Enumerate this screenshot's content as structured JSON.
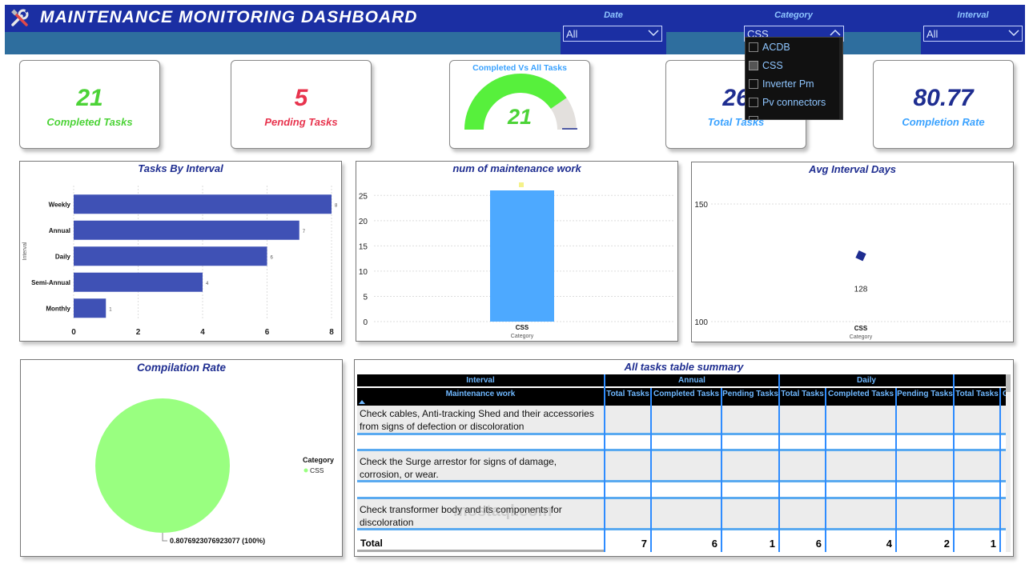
{
  "header": {
    "title": "MAINTENANCE MONITORING DASHBOARD",
    "colors": {
      "header_bg": "#1b2fa3",
      "header_band": "#2e6e9e",
      "slicer_title": "#8fc6ff"
    }
  },
  "slicers": {
    "date": {
      "title": "Date",
      "value": "All"
    },
    "category": {
      "title": "Category",
      "value": "CSS"
    },
    "interval": {
      "title": "Interval",
      "value": "All"
    }
  },
  "category_dropdown": {
    "options": [
      {
        "label": "ACDB",
        "checked": false
      },
      {
        "label": "CSS",
        "checked": true
      },
      {
        "label": "Inverter Pm",
        "checked": false
      },
      {
        "label": "Pv connectors",
        "checked": false
      }
    ]
  },
  "kpis": {
    "completed": {
      "value": "21",
      "label": "Completed Tasks",
      "color": "#4cd337"
    },
    "pending": {
      "value": "5",
      "label": "Pending Tasks",
      "color": "#e8344e"
    },
    "gauge": {
      "title": "Completed Vs All Tasks",
      "value": "21",
      "fraction": 0.8077,
      "color": "#57f03c"
    },
    "total": {
      "value": "26",
      "label": "Total Tasks",
      "color": "#1e2d90"
    },
    "rate": {
      "value": "80.77",
      "label": "Completion Rate",
      "color": "#1e2d90"
    }
  },
  "tasks_by_interval": {
    "title": "Tasks By Interval",
    "chart_data": {
      "type": "bar",
      "orientation": "horizontal",
      "categories": [
        "Weekly",
        "Annual",
        "Daily",
        "Semi-Annual",
        "Monthly"
      ],
      "values": [
        8,
        7,
        6,
        4,
        1
      ],
      "ylabel": "Interval",
      "xlim": [
        0,
        8
      ],
      "xticks": [
        "0",
        "2",
        "4",
        "6",
        "8"
      ],
      "color": "#3f51b5",
      "grid": true
    }
  },
  "num_maintenance": {
    "title": "num of maintenance work",
    "chart_data": {
      "type": "bar",
      "categories": [
        "CSS"
      ],
      "values": [
        26
      ],
      "xlabel": "Category",
      "ylim": [
        0,
        26
      ],
      "yticks": [
        "0",
        "5",
        "10",
        "15",
        "20",
        "25"
      ],
      "color": "#4da9ff",
      "grid": true
    }
  },
  "avg_interval": {
    "title": "Avg Interval Days",
    "chart_data": {
      "type": "scatter",
      "categories": [
        "CSS"
      ],
      "values": [
        128
      ],
      "data_label": "128",
      "xlabel": "Category",
      "ylim": [
        100,
        150
      ],
      "yticks": [
        "100",
        "150"
      ],
      "color": "#1e2d90",
      "grid": true
    }
  },
  "compilation_rate": {
    "title": "Compilation Rate",
    "chart_data": {
      "type": "pie",
      "slices": [
        {
          "name": "CSS",
          "value": 0.8076923076923077
        }
      ],
      "data_label": "0.8076923076923077 (100%)",
      "legend_title": "Category",
      "legend_position": "right",
      "color": "#99ff80"
    }
  },
  "table": {
    "title": "All tasks table summary",
    "group_header_label": "Interval",
    "row_header_label": "Maintenance work",
    "groups": [
      "Annual",
      "Daily"
    ],
    "columns": [
      "Total Tasks",
      "Completed Tasks",
      "Pending Tasks",
      "Total Tasks",
      "Completed Tasks",
      "Pending Tasks",
      "Total Tasks",
      "C"
    ],
    "rows": [
      "Check cables, Anti-tracking Shed and their accessories from signs of defection or discoloration",
      "Check the Surge arrestor for signs of damage, corrosion, or wear.",
      "Check transformer body and its components for discoloration"
    ],
    "total_label": "Total",
    "totals": [
      "7",
      "6",
      "1",
      "6",
      "4",
      "2",
      "1"
    ]
  },
  "watermark": "mostaql.com"
}
